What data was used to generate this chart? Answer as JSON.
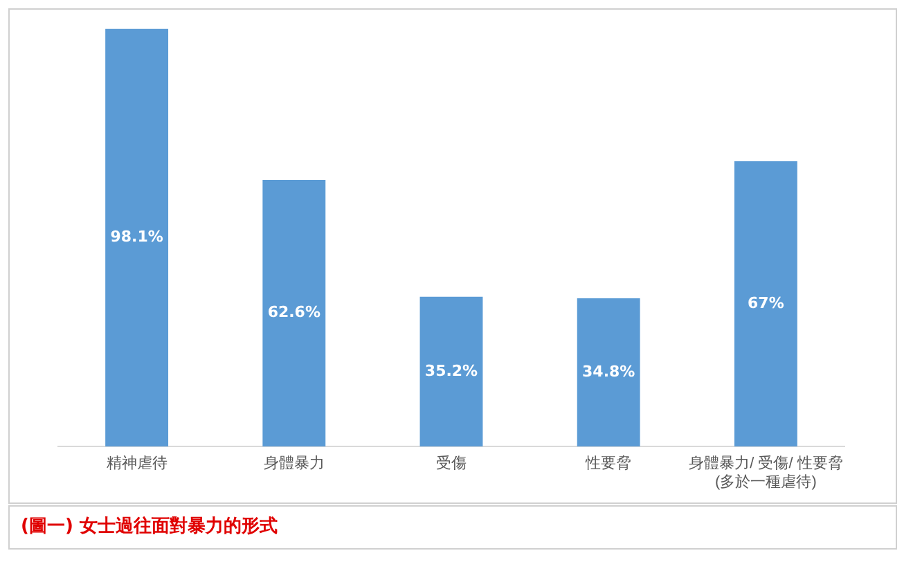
{
  "chart_data": {
    "type": "bar",
    "title": "(圖一) 女士過往面對暴力的形式",
    "categories": [
      "精神虐待",
      "身體暴力",
      "受傷",
      "性要脅",
      "身體暴力/ 受傷/ 性要脅\n(多於一種虐待)"
    ],
    "values": [
      98.1,
      62.6,
      35.2,
      34.8,
      67
    ],
    "value_labels": [
      "98.1%",
      "62.6%",
      "35.2%",
      "34.8%",
      "67%"
    ],
    "color": "#5b9bd5",
    "grid": false,
    "legend": false
  }
}
